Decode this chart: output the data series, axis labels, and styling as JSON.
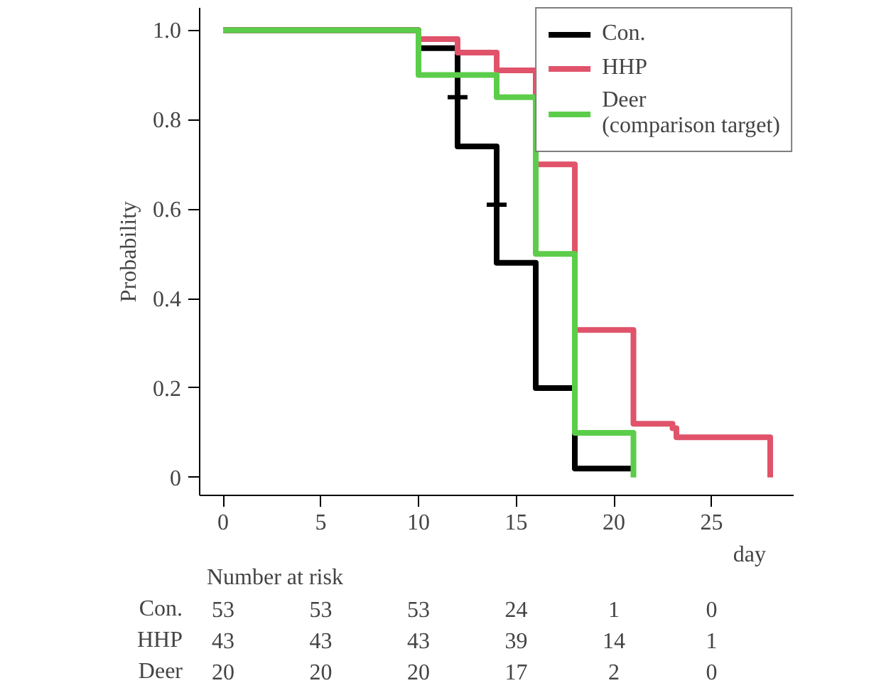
{
  "chart_data": {
    "type": "step",
    "ylabel": "Probability",
    "xlabel": "day",
    "xlim": [
      -1.2,
      29.2
    ],
    "ylim": [
      -0.04,
      1.05
    ],
    "xticks": [
      0,
      5,
      10,
      15,
      20,
      25
    ],
    "yticks": [
      {
        "value": 0,
        "label": "0"
      },
      0.2,
      0.4,
      0.6,
      0.8,
      {
        "value": 1,
        "label": "1.0"
      }
    ],
    "series": [
      {
        "name": "Con.",
        "color": "#000000",
        "x": [
          0,
          10,
          12,
          14,
          16,
          18,
          21
        ],
        "values": [
          1,
          0.96,
          0.74,
          0.48,
          0.2,
          0.02,
          0.02
        ]
      },
      {
        "name": "HHP",
        "color": "#e0536a",
        "x": [
          0,
          10,
          12,
          14,
          16,
          18,
          21,
          23,
          23.2,
          28
        ],
        "values": [
          1,
          0.98,
          0.95,
          0.91,
          0.7,
          0.33,
          0.12,
          0.11,
          0.09,
          0
        ]
      },
      {
        "name": "Deer\n(comparison target)",
        "color": "#5ccd4a",
        "x": [
          0,
          10,
          14,
          16,
          18,
          21
        ],
        "values": [
          1,
          0.9,
          0.85,
          0.5,
          0.1,
          0
        ]
      },
      {
        "type": "scatter",
        "color": "#000000",
        "marker": "cross",
        "x": [
          12,
          14
        ],
        "values": [
          0.85,
          0.61
        ]
      }
    ],
    "legend": "top right",
    "grid": false,
    "line_style": "solid",
    "annotations": [
      "Number at risk",
      "Con.",
      "53",
      "53",
      "53",
      "24",
      "1",
      "0",
      "HHP",
      "43",
      "43",
      "43",
      "39",
      "14",
      "1",
      "Deer",
      "20",
      "20",
      "20",
      "17",
      "2",
      "0"
    ]
  }
}
